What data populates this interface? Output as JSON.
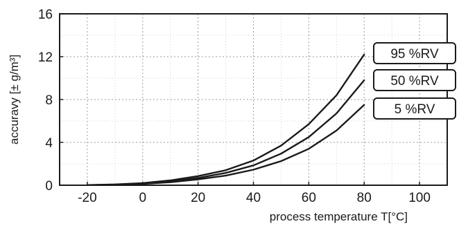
{
  "chart_data": {
    "type": "line",
    "xlabel": "process temperature T[°C]",
    "ylabel": "accuravy  [± g/m³]",
    "xlim": [
      -30,
      110
    ],
    "ylim": [
      0,
      16
    ],
    "xticks": [
      -20,
      0,
      20,
      40,
      60,
      80,
      100
    ],
    "yticks": [
      0,
      4,
      8,
      12,
      16
    ],
    "grid": true,
    "legend_placement": "right",
    "series": [
      {
        "name": "95 %RV",
        "x": [
          -20,
          -10,
          0,
          10,
          20,
          30,
          40,
          50,
          60,
          70,
          80
        ],
        "y": [
          0.02,
          0.08,
          0.2,
          0.45,
          0.85,
          1.4,
          2.3,
          3.7,
          5.7,
          8.4,
          12.2
        ]
      },
      {
        "name": "50 %RV",
        "x": [
          -20,
          -10,
          0,
          10,
          20,
          30,
          40,
          50,
          60,
          70,
          80
        ],
        "y": [
          0.01,
          0.06,
          0.15,
          0.35,
          0.68,
          1.15,
          1.85,
          2.95,
          4.5,
          6.7,
          9.8
        ]
      },
      {
        "name": "5 %RV",
        "x": [
          -20,
          -10,
          0,
          10,
          20,
          30,
          40,
          50,
          60,
          70,
          80
        ],
        "y": [
          0.01,
          0.04,
          0.12,
          0.28,
          0.55,
          0.9,
          1.45,
          2.25,
          3.4,
          5.1,
          7.5
        ]
      }
    ]
  }
}
